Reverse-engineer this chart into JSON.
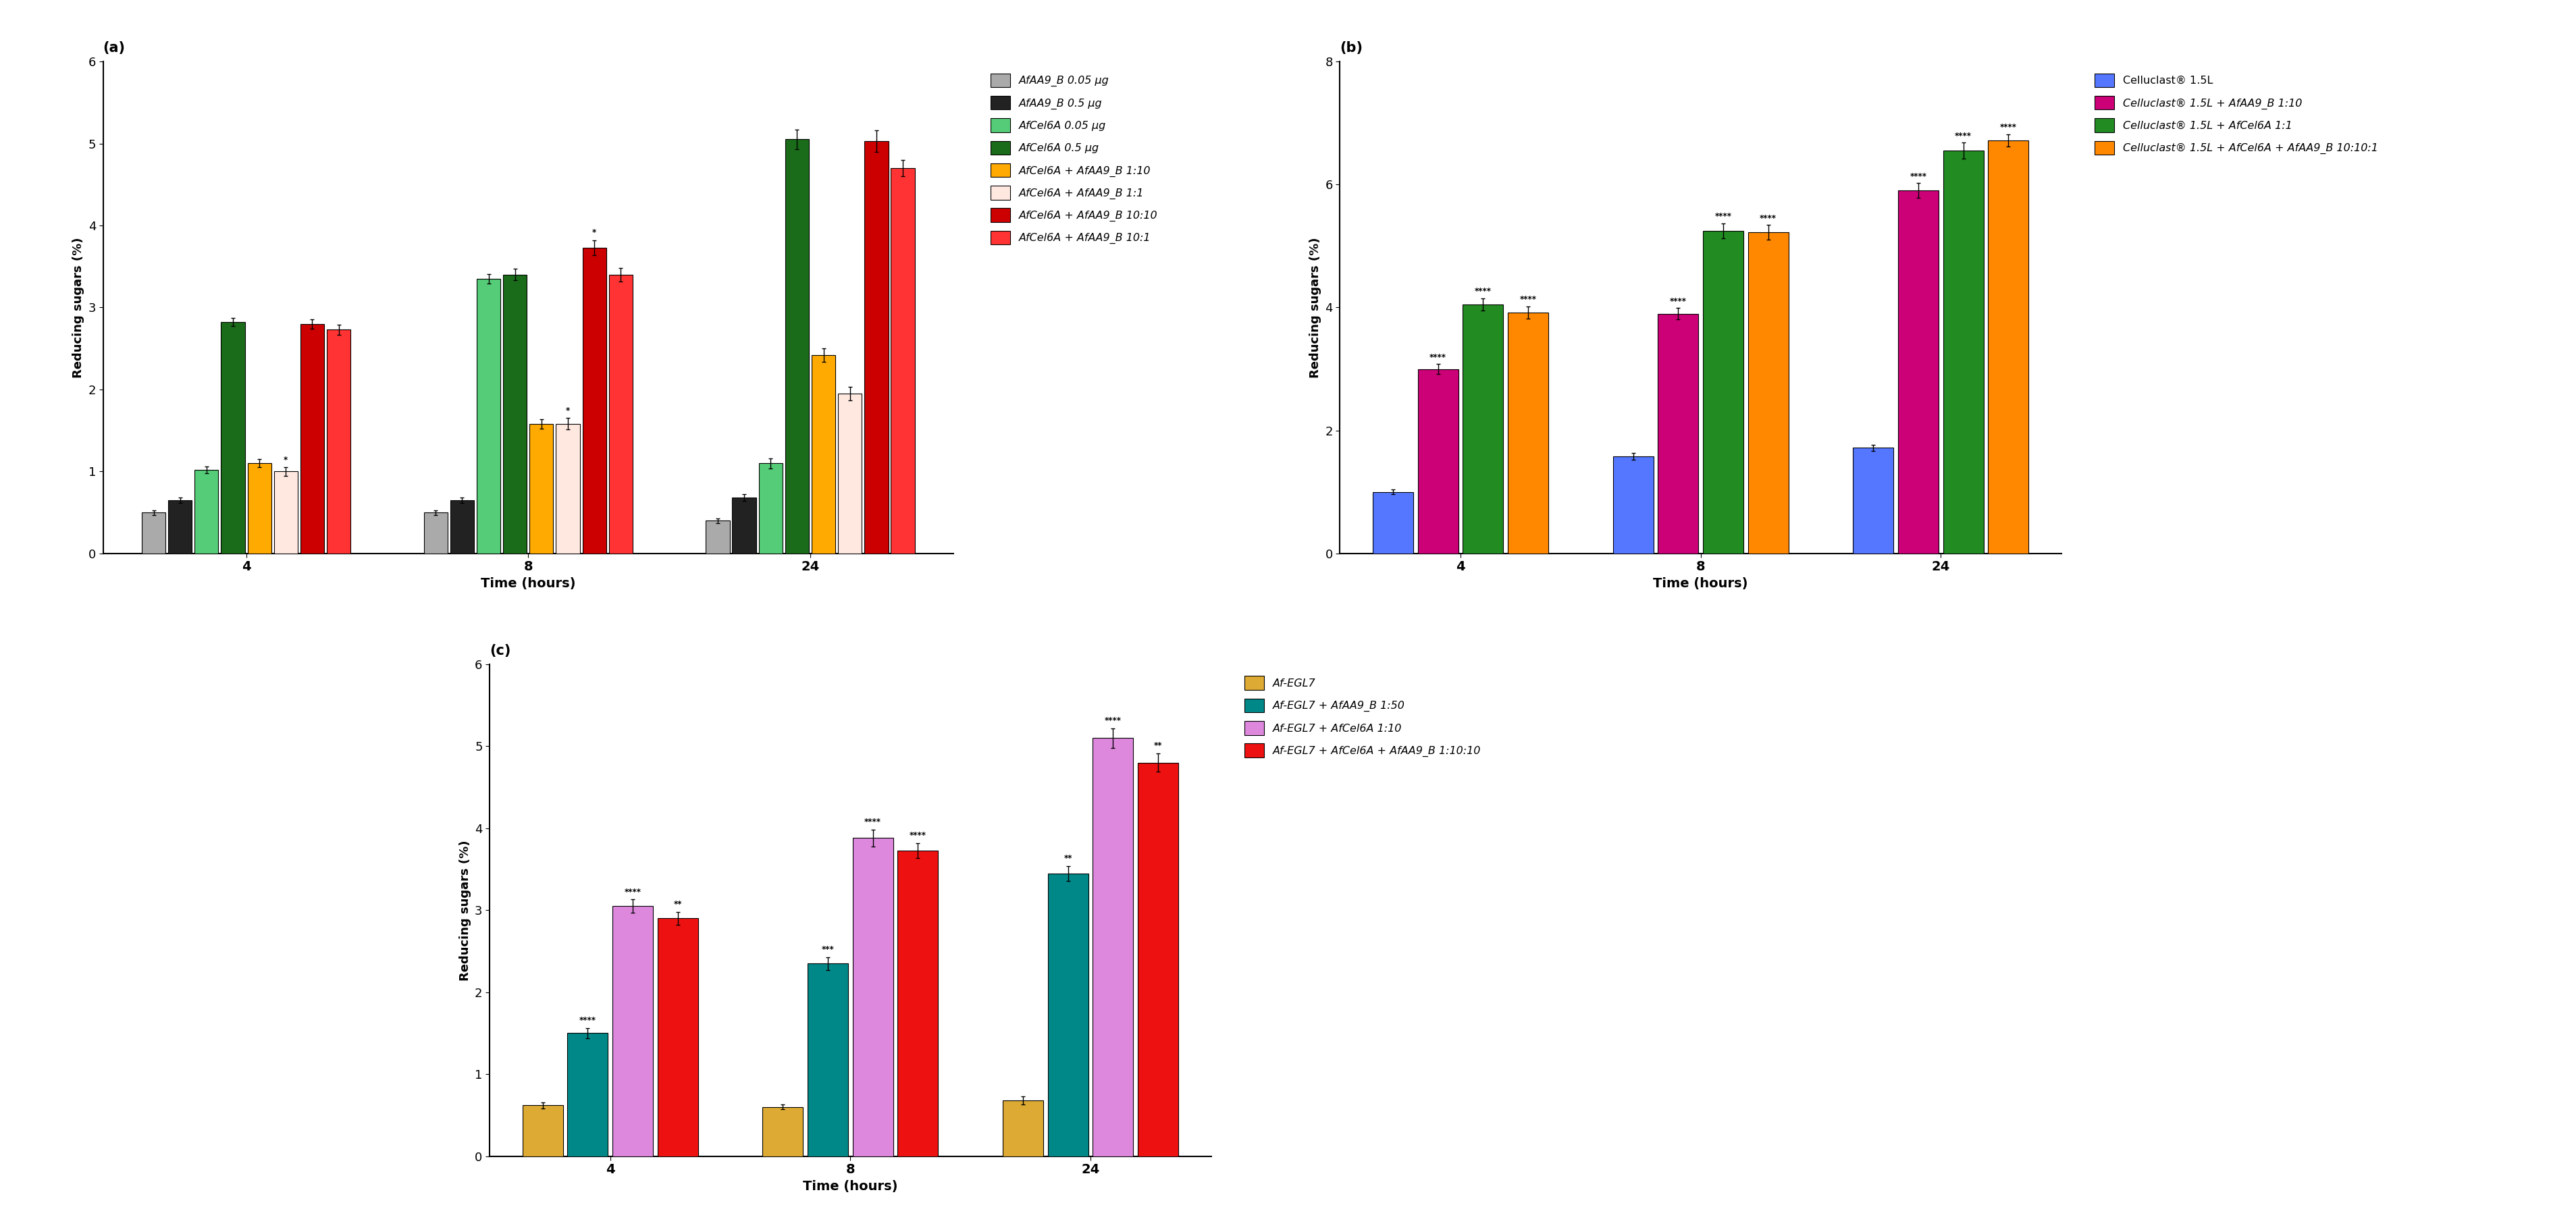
{
  "panel_a": {
    "title": "(a)",
    "ylabel": "Reducing sugars (%)",
    "xlabel": "Time (hours)",
    "ylim": [
      0,
      6
    ],
    "yticks": [
      0,
      1,
      2,
      3,
      4,
      5,
      6
    ],
    "time_points": [
      "4",
      "8",
      "24"
    ],
    "series": [
      {
        "label_parts": [
          [
            "AfAA9_B",
            true
          ],
          [
            " 0.05 μg",
            false
          ]
        ],
        "color": "#aaaaaa",
        "values": [
          0.5,
          0.5,
          0.4
        ],
        "errors": [
          0.03,
          0.03,
          0.03
        ],
        "sig": [
          "",
          "",
          ""
        ]
      },
      {
        "label_parts": [
          [
            "AfAA9_B",
            true
          ],
          [
            " 0.5 μg",
            false
          ]
        ],
        "color": "#222222",
        "values": [
          0.65,
          0.65,
          0.68
        ],
        "errors": [
          0.03,
          0.03,
          0.04
        ],
        "sig": [
          "",
          "",
          ""
        ]
      },
      {
        "label_parts": [
          [
            "AfCel6A",
            true
          ],
          [
            " 0.05 μg",
            false
          ]
        ],
        "color": "#55cc77",
        "values": [
          1.02,
          3.35,
          1.1
        ],
        "errors": [
          0.04,
          0.06,
          0.06
        ],
        "sig": [
          "",
          "",
          ""
        ]
      },
      {
        "label_parts": [
          [
            "AfCel6A",
            true
          ],
          [
            " 0.5 μg",
            false
          ]
        ],
        "color": "#1a6b1a",
        "values": [
          2.82,
          3.4,
          5.05
        ],
        "errors": [
          0.05,
          0.07,
          0.12
        ],
        "sig": [
          "",
          "",
          ""
        ]
      },
      {
        "label_parts": [
          [
            "AfCel6A",
            true
          ],
          [
            " + ",
            false
          ],
          [
            "AfAA9_B",
            true
          ],
          [
            " 1:10",
            false
          ]
        ],
        "color": "#ffaa00",
        "values": [
          1.1,
          1.58,
          2.42
        ],
        "errors": [
          0.05,
          0.06,
          0.08
        ],
        "sig": [
          "",
          "",
          ""
        ]
      },
      {
        "label_parts": [
          [
            "AfCel6A",
            true
          ],
          [
            " + ",
            false
          ],
          [
            "AfAA9_B",
            true
          ],
          [
            " 1:1",
            false
          ]
        ],
        "color": "#ffe8e0",
        "values": [
          1.0,
          1.58,
          1.95
        ],
        "errors": [
          0.05,
          0.07,
          0.08
        ],
        "sig": [
          "*",
          "*",
          ""
        ]
      },
      {
        "label_parts": [
          [
            "AfCel6A",
            true
          ],
          [
            " + ",
            false
          ],
          [
            "AfAA9_B",
            true
          ],
          [
            " 10:10",
            false
          ]
        ],
        "color": "#cc0000",
        "values": [
          2.8,
          3.73,
          5.03
        ],
        "errors": [
          0.06,
          0.09,
          0.13
        ],
        "sig": [
          "",
          "*",
          ""
        ]
      },
      {
        "label_parts": [
          [
            "AfCel6A",
            true
          ],
          [
            " + ",
            false
          ],
          [
            "AfAA9_B",
            true
          ],
          [
            " 10:1",
            false
          ]
        ],
        "color": "#ff3333",
        "values": [
          2.73,
          3.4,
          4.7
        ],
        "errors": [
          0.06,
          0.08,
          0.1
        ],
        "sig": [
          "",
          "",
          ""
        ]
      }
    ]
  },
  "panel_b": {
    "title": "(b)",
    "ylabel": "Reducing sugars (%)",
    "xlabel": "Time (hours)",
    "ylim": [
      0,
      8
    ],
    "yticks": [
      0,
      2,
      4,
      6,
      8
    ],
    "time_points": [
      "4",
      "8",
      "24"
    ],
    "series": [
      {
        "label_parts": [
          [
            "Celluclast",
            false
          ],
          [
            "®",
            false
          ],
          [
            " 1.5L",
            false
          ]
        ],
        "color": "#5577ff",
        "values": [
          1.0,
          1.58,
          1.72
        ],
        "errors": [
          0.04,
          0.05,
          0.05
        ],
        "sig": [
          "",
          "",
          ""
        ]
      },
      {
        "label_parts": [
          [
            "Celluclast",
            false
          ],
          [
            "®",
            false
          ],
          [
            " 1.5L + ",
            false
          ],
          [
            "Af",
            true
          ],
          [
            "AA9_B 1:10",
            false
          ]
        ],
        "color": "#cc0077",
        "values": [
          3.0,
          3.9,
          5.9
        ],
        "errors": [
          0.08,
          0.09,
          0.12
        ],
        "sig": [
          "****",
          "****",
          "****"
        ]
      },
      {
        "label_parts": [
          [
            "Celluclast",
            false
          ],
          [
            "®",
            false
          ],
          [
            " 1.5L + ",
            false
          ],
          [
            "Af",
            true
          ],
          [
            "Cel6A 1:1",
            false
          ]
        ],
        "color": "#228B22",
        "values": [
          4.05,
          5.25,
          6.55
        ],
        "errors": [
          0.1,
          0.12,
          0.13
        ],
        "sig": [
          "****",
          "****",
          "****"
        ]
      },
      {
        "label_parts": [
          [
            "Celluclast",
            false
          ],
          [
            "®",
            false
          ],
          [
            " 1.5L + ",
            false
          ],
          [
            "Af",
            true
          ],
          [
            "Cel6A + ",
            false
          ],
          [
            "Af",
            true
          ],
          [
            "AA9_B 10:10:1",
            false
          ]
        ],
        "color": "#ff8800",
        "values": [
          3.92,
          5.22,
          6.72
        ],
        "errors": [
          0.1,
          0.12,
          0.1
        ],
        "sig": [
          "****",
          "****",
          "****"
        ]
      }
    ]
  },
  "panel_c": {
    "title": "(c)",
    "ylabel": "Reducing sugars (%)",
    "xlabel": "Time (hours)",
    "ylim": [
      0,
      6
    ],
    "yticks": [
      0,
      1,
      2,
      3,
      4,
      5,
      6
    ],
    "time_points": [
      "4",
      "8",
      "24"
    ],
    "series": [
      {
        "label_parts": [
          [
            "Af",
            true
          ],
          [
            "-EGL7",
            false
          ]
        ],
        "color": "#ddaa33",
        "values": [
          0.62,
          0.6,
          0.68
        ],
        "errors": [
          0.04,
          0.03,
          0.05
        ],
        "sig": [
          "",
          "",
          ""
        ]
      },
      {
        "label_parts": [
          [
            "Af",
            true
          ],
          [
            "-EGL7 + ",
            false
          ],
          [
            "Af",
            true
          ],
          [
            "AA9_B 1:50",
            false
          ]
        ],
        "color": "#008888",
        "values": [
          1.5,
          2.35,
          3.45
        ],
        "errors": [
          0.06,
          0.08,
          0.09
        ],
        "sig": [
          "****",
          "***",
          "**"
        ]
      },
      {
        "label_parts": [
          [
            "Af",
            true
          ],
          [
            "-EGL7 + ",
            false
          ],
          [
            "Af",
            true
          ],
          [
            "Cel6A 1:10",
            false
          ]
        ],
        "color": "#dd88dd",
        "values": [
          3.05,
          3.88,
          5.1
        ],
        "errors": [
          0.08,
          0.1,
          0.12
        ],
        "sig": [
          "****",
          "****",
          "****"
        ]
      },
      {
        "label_parts": [
          [
            "Af",
            true
          ],
          [
            "-EGL7 + ",
            false
          ],
          [
            "Af",
            true
          ],
          [
            "Cel6A + ",
            false
          ],
          [
            "Af",
            true
          ],
          [
            "AA9_B 1:10:10",
            false
          ]
        ],
        "color": "#ee1111",
        "values": [
          2.9,
          3.73,
          4.8
        ],
        "errors": [
          0.08,
          0.09,
          0.11
        ],
        "sig": [
          "**",
          "****",
          "**"
        ]
      }
    ]
  }
}
